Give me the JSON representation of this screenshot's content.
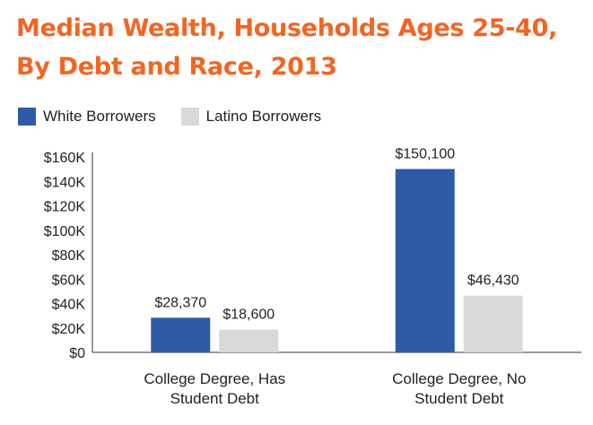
{
  "title_lines": [
    "Median Wealth, Households Ages 25-40,",
    "By Debt and Race, 2013"
  ],
  "chart_data": {
    "type": "bar",
    "title": "Median Wealth, Households Ages 25-40, By Debt and Race, 2013",
    "categories": [
      [
        "College Degree, Has",
        "Student Debt"
      ],
      [
        "College Degree, No",
        "Student Debt"
      ]
    ],
    "series": [
      {
        "name": "White Borrowers",
        "color": "#2e5ba8",
        "values": [
          28370,
          150100
        ],
        "labels": [
          "$28,370",
          "$150,100"
        ]
      },
      {
        "name": "Latino Borrowers",
        "color": "#d9d9d9",
        "values": [
          18600,
          46430
        ],
        "labels": [
          "$18,600",
          "$46,430"
        ]
      }
    ],
    "ylim": [
      0,
      160000
    ],
    "yticks": [
      0,
      20000,
      40000,
      60000,
      80000,
      100000,
      120000,
      140000,
      160000
    ],
    "ytick_labels": [
      "$0",
      "$20K",
      "$40K",
      "$60K",
      "$80K",
      "$100K",
      "$120K",
      "$140K",
      "$160K"
    ],
    "legend_position": "top-left",
    "grid": false
  }
}
